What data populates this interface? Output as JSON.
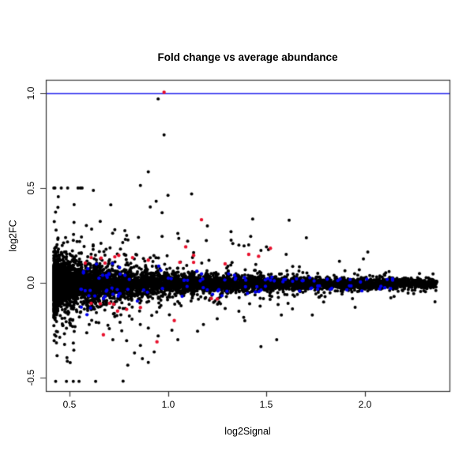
{
  "chart_data": {
    "type": "scatter",
    "title": "Fold change vs average abundance",
    "xlabel": "log2Signal",
    "ylabel": "log2FC",
    "xlim": [
      0.388,
      2.432
    ],
    "ylim": [
      -0.571,
      1.071
    ],
    "grid": false,
    "legend": null,
    "xticks": [
      0.5,
      1.0,
      1.5,
      2.0
    ],
    "xtick_labels": [
      "0.5",
      "1.0",
      "1.5",
      "2.0"
    ],
    "yticks": [
      -0.5,
      0.0,
      0.5,
      1.0
    ],
    "ytick_labels": [
      "-0.5",
      "0.0",
      "0.5",
      "1.0"
    ],
    "reference_line": {
      "y": 1.0,
      "color": "#2b2bee"
    },
    "colors": {
      "points_main": "#000000",
      "points_highlight_blue": "#0000ee",
      "points_highlight_red": "#e8112d",
      "box": "#333333",
      "background": "#ffffff"
    },
    "main_cloud": {
      "description": "dense black MA-plot funnel, ~6000 probes, centered near log2FC=0, spread shrinking with signal",
      "n": 6000,
      "seed": 1337,
      "x_min": 0.42,
      "x_span": 1.945,
      "x_pow": 1.9,
      "y_center": -0.005,
      "sigma_base": 0.01,
      "sigma_amp": 0.052,
      "sigma_decay": 0.55,
      "mixture": [
        {
          "p": 0.8,
          "k": 1.0
        },
        {
          "p": 0.17,
          "k": 2.2
        },
        {
          "p": 0.03,
          "k": 6.0
        }
      ],
      "y_clamp": [
        -0.52,
        0.5
      ]
    },
    "blue_cloud": {
      "description": "blue-flagged probes riding the edges of the main band",
      "n": 112,
      "seed": 777,
      "x_min": 0.55,
      "x_span": 1.6,
      "x_pow": 1.4,
      "y_center": -0.005,
      "offset_min": 0.55,
      "offset_rand": 1.15,
      "y_clamp": [
        -0.17,
        0.17
      ]
    },
    "red_points": [
      [
        0.98,
        1.005
      ],
      [
        1.17,
        0.333
      ],
      [
        1.52,
        0.182
      ],
      [
        1.41,
        0.15
      ],
      [
        1.09,
        0.19
      ],
      [
        1.29,
        0.1
      ],
      [
        1.13,
        0.145
      ],
      [
        1.06,
        0.108
      ],
      [
        1.13,
        0.108
      ],
      [
        1.46,
        0.14
      ],
      [
        0.61,
        0.133
      ],
      [
        0.73,
        0.137
      ],
      [
        0.82,
        0.133
      ],
      [
        0.75,
        0.145
      ],
      [
        0.66,
        0.13
      ],
      [
        0.58,
        0.104
      ],
      [
        0.68,
        0.104
      ],
      [
        0.9,
        0.12
      ],
      [
        1.22,
        -0.083
      ],
      [
        1.25,
        -0.085
      ],
      [
        0.61,
        -0.108
      ],
      [
        0.656,
        -0.11
      ],
      [
        0.704,
        -0.108
      ],
      [
        0.724,
        -0.112
      ],
      [
        0.744,
        -0.149
      ],
      [
        0.79,
        -0.14
      ],
      [
        0.86,
        -0.13
      ],
      [
        1.032,
        -0.199
      ],
      [
        0.944,
        -0.311
      ],
      [
        0.672,
        -0.274
      ]
    ],
    "black_outliers": [
      [
        0.95,
        0.97
      ],
      [
        0.98,
        0.78
      ],
      [
        0.9,
        0.585
      ],
      [
        0.86,
        0.514
      ],
      [
        1.0,
        0.461
      ],
      [
        1.12,
        0.469
      ],
      [
        0.94,
        0.43
      ],
      [
        0.91,
        0.4
      ],
      [
        0.97,
        0.37
      ],
      [
        1.43,
        0.336
      ],
      [
        1.42,
        0.245
      ],
      [
        1.36,
        0.199
      ],
      [
        1.5,
        0.19
      ],
      [
        1.51,
        0.175
      ],
      [
        0.656,
        0.324
      ],
      [
        0.73,
        0.28
      ],
      [
        0.79,
        0.25
      ],
      [
        0.85,
        0.24
      ],
      [
        1.2,
        0.3
      ],
      [
        1.05,
        0.26
      ],
      [
        0.97,
        0.245
      ],
      [
        1.1,
        0.22
      ],
      [
        0.62,
        0.2
      ],
      [
        0.56,
        0.155
      ],
      [
        1.32,
        0.27
      ],
      [
        1.6,
        0.15
      ],
      [
        0.772,
        -0.519
      ],
      [
        0.9,
        -0.42
      ],
      [
        0.87,
        -0.4
      ],
      [
        0.93,
        -0.365
      ],
      [
        1.472,
        -0.336
      ],
      [
        1.552,
        -0.3
      ],
      [
        1.632,
        -0.137
      ],
      [
        1.36,
        -0.15
      ],
      [
        1.39,
        -0.2
      ],
      [
        0.86,
        -0.33
      ],
      [
        0.79,
        -0.305
      ],
      [
        0.72,
        -0.3
      ],
      [
        1.02,
        -0.25
      ],
      [
        1.15,
        -0.255
      ],
      [
        0.95,
        -0.28
      ],
      [
        1.05,
        -0.3
      ],
      [
        0.6,
        -0.22
      ],
      [
        0.55,
        -0.18
      ],
      [
        0.83,
        -0.37
      ],
      [
        1.25,
        -0.19
      ],
      [
        1.18,
        -0.22
      ]
    ]
  }
}
